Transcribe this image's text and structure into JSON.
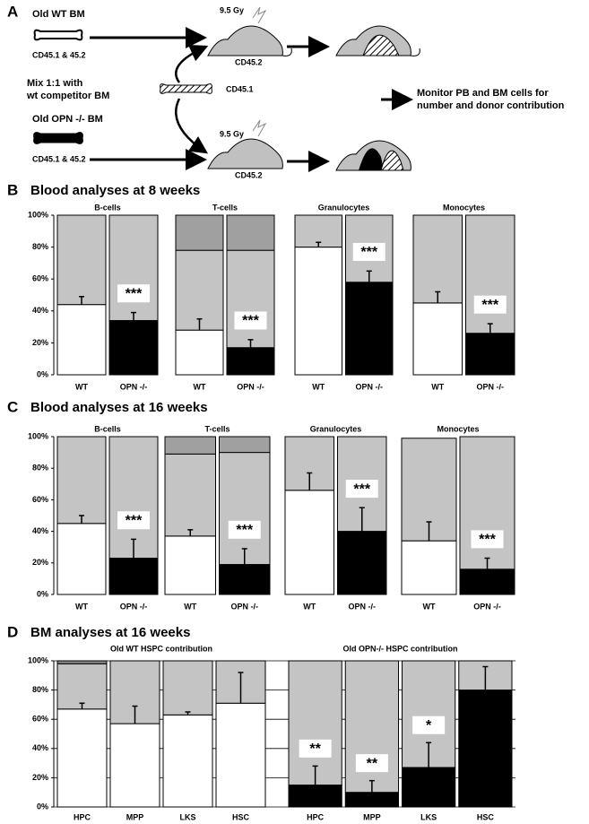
{
  "panel_a": {
    "label": "A",
    "wt_donor": "Old WT BM",
    "wt_donor_markers": "CD45.1 & 45.2",
    "mix_line1": "Mix 1:1 with",
    "mix_line2": "wt competitor BM",
    "competitor_marker": "CD45.1",
    "opn_donor": "Old OPN -/-  BM",
    "opn_donor_markers": "CD45.1 & 45.2",
    "dose_top": "9.5 Gy",
    "recipient_top": "CD45.2",
    "dose_bottom": "9.5 Gy",
    "recipient_bottom": "CD45.2",
    "monitor_line1": "Monitor PB and BM cells for",
    "monitor_line2": "number and donor contribution"
  },
  "chart_data": [
    {
      "type": "stacked_bar",
      "panel": "B",
      "title": "Blood analyses at 8 weeks",
      "ylim": [
        0,
        100
      ],
      "yticks": [
        {
          "value": 0,
          "label": "0%"
        },
        {
          "value": 20,
          "label": "20%"
        },
        {
          "value": 40,
          "label": "40%"
        },
        {
          "value": 60,
          "label": "60%"
        },
        {
          "value": 80,
          "label": "80%"
        },
        {
          "value": 100,
          "label": "100%"
        }
      ],
      "grid": false,
      "groups": [
        {
          "title": "B-cells",
          "categories": [
            "WT",
            "OPN -/-"
          ],
          "series": [
            {
              "colors": [
                "#ffffff",
                "#000000"
              ],
              "values": [
                44,
                34
              ],
              "errors": [
                5,
                5
              ]
            },
            {
              "color": "#c4c4c4",
              "values": [
                56,
                66
              ]
            }
          ],
          "annotations": [
            null,
            "***"
          ]
        },
        {
          "title": "T-cells",
          "categories": [
            "WT",
            "OPN -/-"
          ],
          "series": [
            {
              "colors": [
                "#ffffff",
                "#000000"
              ],
              "values": [
                28,
                17
              ],
              "errors": [
                7,
                5
              ]
            },
            {
              "color": "#c4c4c4",
              "values": [
                50,
                61
              ]
            },
            {
              "color": "#a0a0a0",
              "values": [
                22,
                22
              ]
            }
          ],
          "annotations": [
            null,
            "***"
          ]
        },
        {
          "title": "Granulocytes",
          "categories": [
            "WT",
            "OPN -/-"
          ],
          "series": [
            {
              "colors": [
                "#ffffff",
                "#000000"
              ],
              "values": [
                80,
                58
              ],
              "errors": [
                3,
                7
              ]
            },
            {
              "color": "#c4c4c4",
              "values": [
                20,
                42
              ]
            }
          ],
          "annotations": [
            null,
            "***"
          ]
        },
        {
          "title": "Monocytes",
          "categories": [
            "WT",
            "OPN -/-"
          ],
          "series": [
            {
              "colors": [
                "#ffffff",
                "#000000"
              ],
              "values": [
                45,
                26
              ],
              "errors": [
                7,
                6
              ]
            },
            {
              "color": "#c4c4c4",
              "values": [
                55,
                74
              ]
            }
          ],
          "annotations": [
            null,
            "***"
          ]
        }
      ]
    },
    {
      "type": "stacked_bar",
      "panel": "C",
      "title": "Blood analyses at 16 weeks",
      "ylim": [
        0,
        100
      ],
      "yticks": [
        {
          "value": 0,
          "label": "0%"
        },
        {
          "value": 20,
          "label": "20%"
        },
        {
          "value": 40,
          "label": "40%"
        },
        {
          "value": 60,
          "label": "60%"
        },
        {
          "value": 80,
          "label": "80%"
        },
        {
          "value": 100,
          "label": "100%"
        }
      ],
      "grid": false,
      "groups": [
        {
          "title": "B-cells",
          "categories": [
            "WT",
            "OPN -/-"
          ],
          "series": [
            {
              "colors": [
                "#ffffff",
                "#000000"
              ],
              "values": [
                45,
                23
              ],
              "errors": [
                5,
                12
              ]
            },
            {
              "color": "#c4c4c4",
              "values": [
                55,
                77
              ]
            }
          ],
          "annotations": [
            null,
            "***"
          ]
        },
        {
          "title": "T-cells",
          "categories": [
            "WT",
            "OPN -/-"
          ],
          "series": [
            {
              "colors": [
                "#ffffff",
                "#000000"
              ],
              "values": [
                37,
                19
              ],
              "errors": [
                4,
                10
              ]
            },
            {
              "color": "#c4c4c4",
              "values": [
                52,
                71
              ]
            },
            {
              "color": "#a0a0a0",
              "values": [
                11,
                10
              ]
            }
          ],
          "annotations": [
            null,
            "***"
          ]
        },
        {
          "title": "Granulocytes",
          "categories": [
            "WT",
            "OPN -/-"
          ],
          "series": [
            {
              "colors": [
                "#ffffff",
                "#000000"
              ],
              "values": [
                66,
                40
              ],
              "errors": [
                11,
                15
              ]
            },
            {
              "color": "#c4c4c4",
              "values": [
                34,
                60
              ]
            }
          ],
          "annotations": [
            null,
            "***"
          ]
        },
        {
          "title": "Monocytes",
          "categories": [
            "WT",
            "OPN -/-"
          ],
          "series": [
            {
              "colors": [
                "#ffffff",
                "#000000"
              ],
              "values": [
                34,
                16
              ],
              "errors": [
                12,
                7
              ]
            },
            {
              "color": "#c4c4c4",
              "values": [
                65,
                84
              ]
            }
          ],
          "annotations": [
            null,
            "***"
          ]
        }
      ]
    },
    {
      "type": "stacked_bar",
      "panel": "D",
      "title": "BM analyses at 16 weeks",
      "ylim": [
        0,
        100
      ],
      "yticks": [
        {
          "value": 0,
          "label": "0%"
        },
        {
          "value": 20,
          "label": "20%"
        },
        {
          "value": 40,
          "label": "40%"
        },
        {
          "value": 60,
          "label": "60%"
        },
        {
          "value": 80,
          "label": "80%"
        },
        {
          "value": 100,
          "label": "100%"
        }
      ],
      "grid": true,
      "groups": [
        {
          "title": "Old WT HSPC contribution",
          "categories": [
            "HPC",
            "MPP",
            "LKS",
            "HSC"
          ],
          "series": [
            {
              "colors": [
                "#ffffff",
                "#ffffff",
                "#ffffff",
                "#ffffff"
              ],
              "values": [
                67,
                57,
                63,
                71
              ],
              "errors": [
                4,
                12,
                2,
                21
              ]
            },
            {
              "color": "#c4c4c4",
              "values": [
                31,
                43,
                37,
                29
              ]
            },
            {
              "color": "#8a8a8a",
              "values": [
                2,
                null,
                null,
                null
              ]
            }
          ],
          "annotations": [
            null,
            null,
            null,
            null
          ]
        },
        {
          "title": "Old OPN-/- HSPC contribution",
          "categories": [
            "HPC",
            "MPP",
            "LKS",
            "HSC"
          ],
          "series": [
            {
              "colors": [
                "#000000",
                "#000000",
                "#000000",
                "#000000"
              ],
              "values": [
                15,
                10,
                27,
                80
              ],
              "errors": [
                13,
                8,
                17,
                16
              ]
            },
            {
              "color": "#c4c4c4",
              "values": [
                85,
                90,
                73,
                20
              ]
            }
          ],
          "annotations": [
            "**",
            "**",
            "*",
            null
          ]
        }
      ]
    }
  ]
}
